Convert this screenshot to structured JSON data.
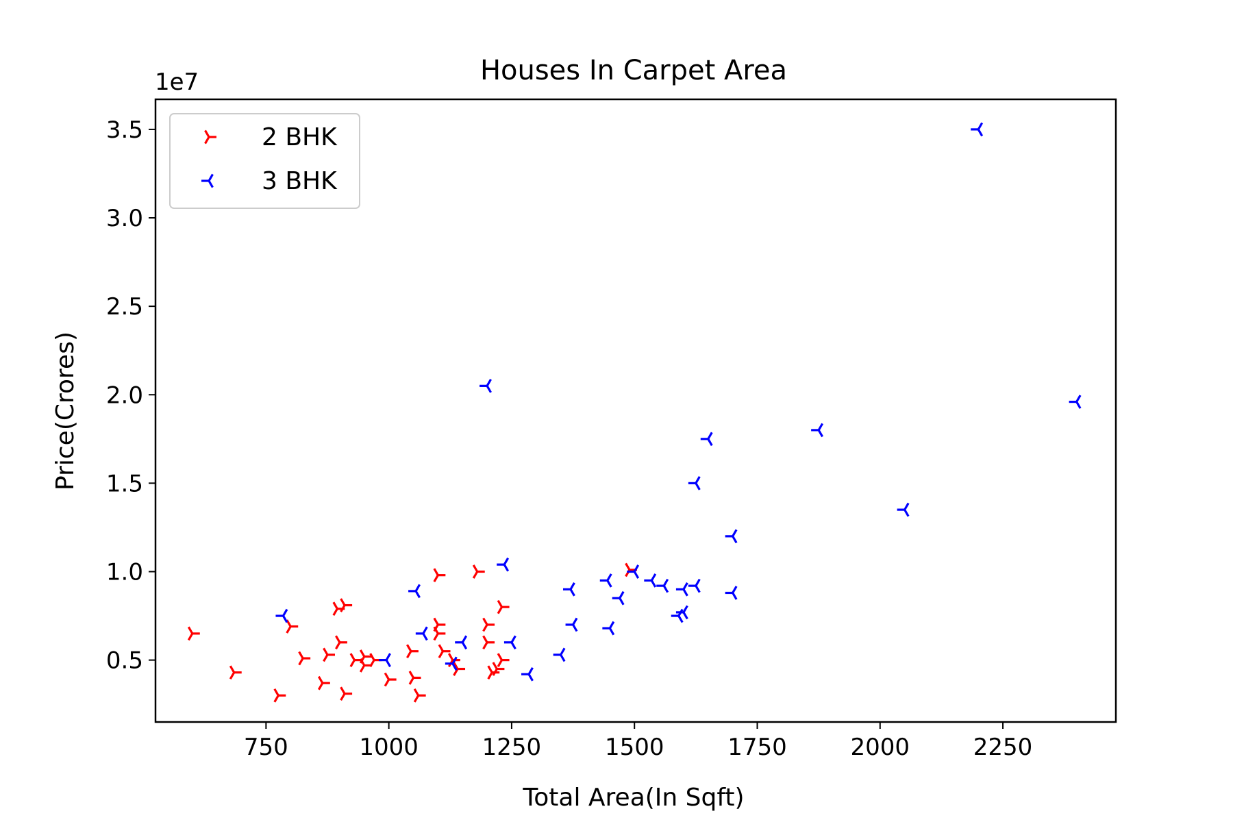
{
  "chart_data": {
    "type": "scatter",
    "title": "Houses In Carpet Area",
    "xlabel": "Total Area(In Sqft)",
    "ylabel": "Price(Crores)",
    "y_offset_label": "1e7",
    "xlim": [
      525,
      2480
    ],
    "ylim": [
      1500000,
      36700000
    ],
    "x_ticks": [
      750,
      1000,
      1250,
      1500,
      1750,
      2000,
      2250
    ],
    "x_tick_labels": [
      "750",
      "1000",
      "1250",
      "1500",
      "1750",
      "2000",
      "2250"
    ],
    "y_ticks": [
      5000000,
      10000000,
      15000000,
      20000000,
      25000000,
      30000000,
      35000000
    ],
    "y_tick_labels": [
      "0.5",
      "1.0",
      "1.5",
      "2.0",
      "2.5",
      "3.0",
      "3.5"
    ],
    "grid": false,
    "legend_position": "upper-left",
    "series": [
      {
        "name": "2 BHK",
        "color": "#ff0000",
        "marker": "tri_right",
        "points": [
          [
            600,
            6500000
          ],
          [
            685,
            4300000
          ],
          [
            775,
            3000000
          ],
          [
            800,
            6900000
          ],
          [
            825,
            5100000
          ],
          [
            865,
            3700000
          ],
          [
            875,
            5300000
          ],
          [
            895,
            7900000
          ],
          [
            900,
            6000000
          ],
          [
            910,
            8100000
          ],
          [
            910,
            3100000
          ],
          [
            930,
            5000000
          ],
          [
            950,
            5200000
          ],
          [
            950,
            4700000
          ],
          [
            970,
            5000000
          ],
          [
            1000,
            3900000
          ],
          [
            1045,
            5500000
          ],
          [
            1050,
            4000000
          ],
          [
            1060,
            3000000
          ],
          [
            1100,
            9800000
          ],
          [
            1100,
            7000000
          ],
          [
            1100,
            6500000
          ],
          [
            1110,
            5500000
          ],
          [
            1130,
            5000000
          ],
          [
            1140,
            4500000
          ],
          [
            1180,
            10000000
          ],
          [
            1200,
            7000000
          ],
          [
            1200,
            6000000
          ],
          [
            1210,
            4300000
          ],
          [
            1220,
            4500000
          ],
          [
            1230,
            5000000
          ],
          [
            1230,
            8000000
          ],
          [
            1490,
            10100000
          ]
        ]
      },
      {
        "name": "3 BHK",
        "color": "#0000ff",
        "marker": "tri_left",
        "points": [
          [
            785,
            7500000
          ],
          [
            995,
            5000000
          ],
          [
            1055,
            8900000
          ],
          [
            1070,
            6500000
          ],
          [
            1130,
            4800000
          ],
          [
            1150,
            6000000
          ],
          [
            1200,
            20500000
          ],
          [
            1235,
            10400000
          ],
          [
            1250,
            6000000
          ],
          [
            1285,
            4200000
          ],
          [
            1350,
            5300000
          ],
          [
            1370,
            9000000
          ],
          [
            1375,
            7000000
          ],
          [
            1445,
            9500000
          ],
          [
            1450,
            6800000
          ],
          [
            1470,
            8500000
          ],
          [
            1500,
            10000000
          ],
          [
            1535,
            9500000
          ],
          [
            1560,
            9200000
          ],
          [
            1590,
            7500000
          ],
          [
            1600,
            7700000
          ],
          [
            1600,
            9000000
          ],
          [
            1625,
            9200000
          ],
          [
            1625,
            15000000
          ],
          [
            1650,
            17500000
          ],
          [
            1700,
            12000000
          ],
          [
            1700,
            8800000
          ],
          [
            1875,
            18000000
          ],
          [
            2050,
            13500000
          ],
          [
            2200,
            35000000
          ],
          [
            2400,
            19600000
          ]
        ]
      }
    ]
  }
}
